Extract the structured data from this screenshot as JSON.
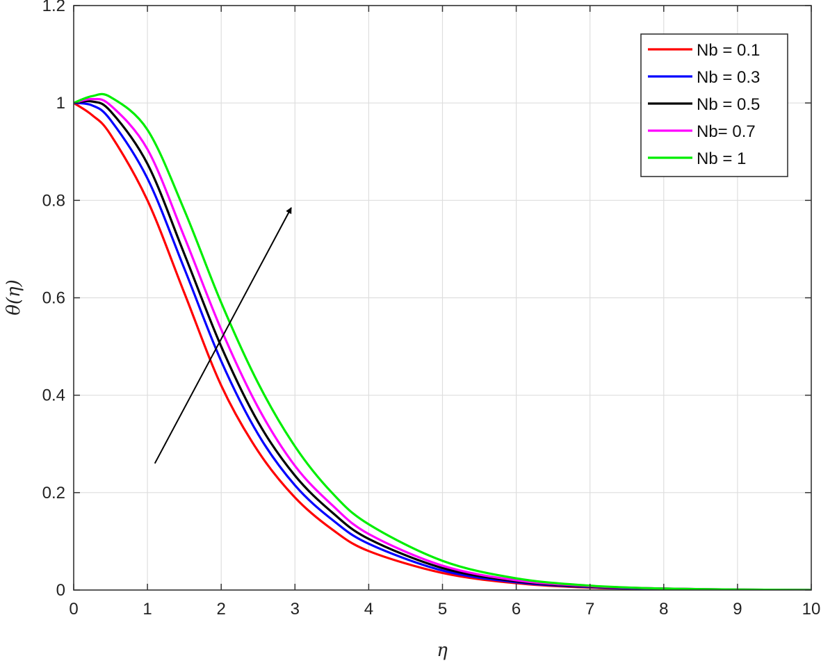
{
  "chart_data": {
    "type": "line",
    "xlabel": "η",
    "ylabel": "θ(η)",
    "xlim": [
      0,
      10
    ],
    "ylim": [
      0,
      1.2
    ],
    "xticks": [
      "0",
      "1",
      "2",
      "3",
      "4",
      "5",
      "6",
      "7",
      "8",
      "9",
      "10"
    ],
    "yticks": [
      "0",
      "0.2",
      "0.4",
      "0.6",
      "0.8",
      "1",
      "1.2"
    ],
    "grid": true,
    "legend_position": "top-right",
    "x": [
      0,
      0.25,
      0.5,
      1,
      1.5,
      2,
      2.5,
      3,
      3.5,
      4,
      5,
      6,
      7,
      8,
      9,
      10
    ],
    "series": [
      {
        "name": "Nb = 0.1",
        "color": "#ff0000",
        "values": [
          1.0,
          0.975,
          0.935,
          0.8,
          0.61,
          0.42,
          0.285,
          0.19,
          0.125,
          0.08,
          0.035,
          0.014,
          0.005,
          0.002,
          0.0,
          0.0
        ]
      },
      {
        "name": "Nb = 0.3",
        "color": "#0000ff",
        "values": [
          1.0,
          0.995,
          0.965,
          0.845,
          0.66,
          0.47,
          0.32,
          0.215,
          0.145,
          0.095,
          0.04,
          0.016,
          0.006,
          0.002,
          0.0,
          0.0
        ]
      },
      {
        "name": "Nb = 0.5",
        "color": "#000000",
        "values": [
          1.0,
          1.003,
          0.983,
          0.875,
          0.69,
          0.5,
          0.345,
          0.235,
          0.16,
          0.105,
          0.045,
          0.018,
          0.007,
          0.003,
          0.001,
          0.0
        ]
      },
      {
        "name": "Nb= 0.7",
        "color": "#ff00ff",
        "values": [
          1.0,
          1.008,
          0.995,
          0.905,
          0.725,
          0.535,
          0.375,
          0.255,
          0.175,
          0.115,
          0.05,
          0.02,
          0.008,
          0.003,
          0.001,
          0.0
        ]
      },
      {
        "name": "Nb = 1",
        "color": "#00ee00",
        "values": [
          1.0,
          1.014,
          1.012,
          0.945,
          0.78,
          0.59,
          0.425,
          0.295,
          0.2,
          0.135,
          0.06,
          0.024,
          0.009,
          0.003,
          0.001,
          0.0
        ]
      }
    ],
    "annotation": {
      "type": "arrow",
      "from": [
        1.1,
        0.26
      ],
      "to": [
        2.95,
        0.785
      ]
    }
  }
}
